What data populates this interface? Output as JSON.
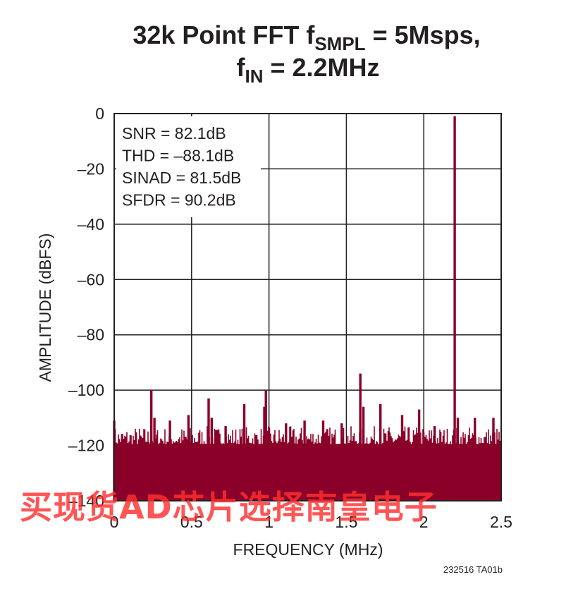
{
  "chart_data": {
    "type": "bar",
    "title_line1": {
      "prefix": "32k Point FFT f",
      "sub": "SMPL",
      "suffix": " = 5Msps,"
    },
    "title_line2": {
      "prefix": "f",
      "sub": "IN",
      "suffix": " = 2.2MHz"
    },
    "xlabel": "FREQUENCY (MHz)",
    "ylabel": "AMPLITUDE (dBFS)",
    "xlim": [
      0,
      2.5
    ],
    "ylim": [
      -140,
      0
    ],
    "x_ticks": [
      0,
      0.5,
      1,
      1.5,
      2,
      2.5
    ],
    "x_tick_labels": [
      "0",
      "0.5",
      "1",
      "1.5",
      "2",
      "2.5"
    ],
    "y_ticks": [
      0,
      -20,
      -40,
      -60,
      -80,
      -100,
      -120,
      -140
    ],
    "y_tick_labels": [
      "0",
      "–20",
      "–40",
      "–60",
      "–80",
      "–100",
      "–120",
      "–140"
    ],
    "grid": true,
    "stats": [
      "SNR = 82.1dB",
      "THD = –88.1dB",
      "SINAD = 81.5dB",
      "SFDR = 90.2dB"
    ],
    "noise_floor_dbfs": -120,
    "spurs": [
      {
        "x": 0.0,
        "y": -111
      },
      {
        "x": 0.24,
        "y": -100
      },
      {
        "x": 0.26,
        "y": -110
      },
      {
        "x": 0.36,
        "y": -111
      },
      {
        "x": 0.48,
        "y": -109
      },
      {
        "x": 0.61,
        "y": -103
      },
      {
        "x": 0.63,
        "y": -110
      },
      {
        "x": 0.72,
        "y": -113
      },
      {
        "x": 0.84,
        "y": -105
      },
      {
        "x": 0.97,
        "y": -106
      },
      {
        "x": 0.98,
        "y": -100
      },
      {
        "x": 1.11,
        "y": -112
      },
      {
        "x": 1.23,
        "y": -111
      },
      {
        "x": 1.35,
        "y": -111
      },
      {
        "x": 1.47,
        "y": -112
      },
      {
        "x": 1.59,
        "y": -94
      },
      {
        "x": 1.61,
        "y": -106
      },
      {
        "x": 1.72,
        "y": -105
      },
      {
        "x": 1.86,
        "y": -109
      },
      {
        "x": 1.97,
        "y": -107
      },
      {
        "x": 2.07,
        "y": -113
      },
      {
        "x": 2.2,
        "y": -1
      },
      {
        "x": 2.22,
        "y": -110
      },
      {
        "x": 2.33,
        "y": -110
      },
      {
        "x": 2.45,
        "y": -110
      }
    ],
    "series_color": "#8b0029"
  },
  "figure_id": "232516 TA01b",
  "watermark": "买现货AD芯片选择南皇电子"
}
